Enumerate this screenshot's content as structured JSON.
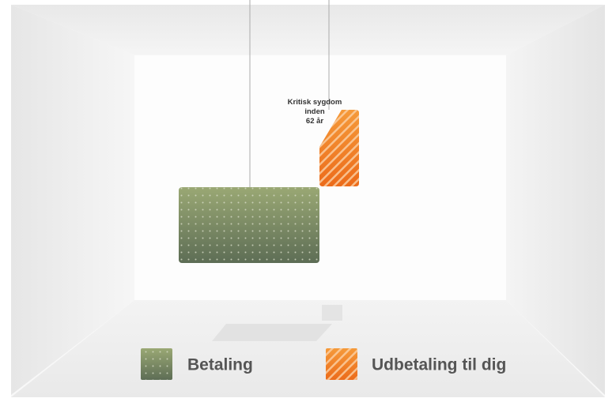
{
  "annotation": {
    "lines": [
      "Kritisk sygdom",
      "inden",
      "62 år"
    ]
  },
  "legend": [
    {
      "label": "Betaling"
    },
    {
      "label": "Udbetaling til dig"
    }
  ]
}
